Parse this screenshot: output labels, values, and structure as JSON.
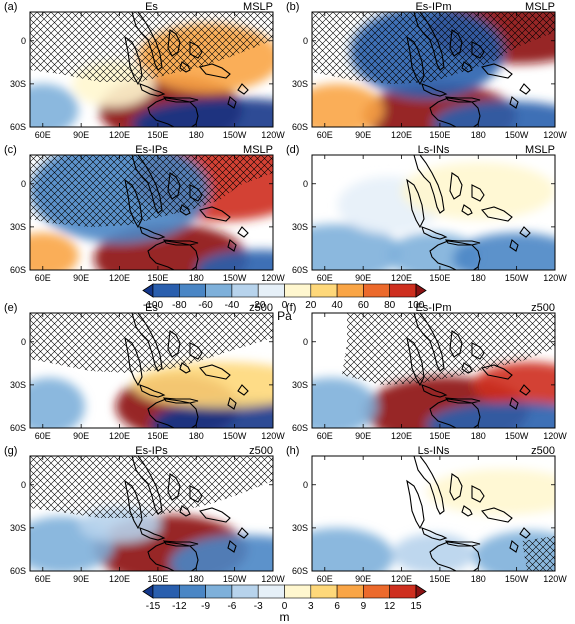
{
  "chart_data": [
    {
      "type": "heatmap",
      "grid": "top",
      "panels": [
        {
          "letter": "(a)",
          "name": "Es",
          "field": "MSLP",
          "fill": [
            {
              "lon": 160,
              "lat": -48,
              "val": 95,
              "rx": 28,
              "ry": 12
            },
            {
              "lon": 210,
              "lat": -58,
              "val": -85,
              "rx": 40,
              "ry": 9
            },
            {
              "lon": 60,
              "lat": -48,
              "val": -35,
              "rx": 14,
              "ry": 9
            },
            {
              "lon": 190,
              "lat": -12,
              "val": 40,
              "rx": 28,
              "ry": 12
            },
            {
              "lon": 115,
              "lat": -30,
              "val": 15,
              "rx": 16,
              "ry": 8
            }
          ]
        },
        {
          "letter": "(b)",
          "name": "Es-IPm",
          "field": "MSLP",
          "fill": [
            {
              "lon": 150,
              "lat": -52,
              "val": 100,
              "rx": 30,
              "ry": 11
            },
            {
              "lon": 210,
              "lat": 8,
              "val": 95,
              "rx": 35,
              "ry": 12
            },
            {
              "lon": 140,
              "lat": -8,
              "val": -70,
              "rx": 30,
              "ry": 16
            },
            {
              "lon": 205,
              "lat": -58,
              "val": -70,
              "rx": 30,
              "ry": 8
            },
            {
              "lon": 70,
              "lat": -48,
              "val": 35,
              "rx": 18,
              "ry": 9
            }
          ]
        },
        {
          "letter": "(c)",
          "name": "Es-IPs",
          "field": "MSLP",
          "fill": [
            {
              "lon": 160,
              "lat": -52,
              "val": 100,
              "rx": 30,
              "ry": 12
            },
            {
              "lon": 200,
              "lat": 2,
              "val": 80,
              "rx": 35,
              "ry": 14
            },
            {
              "lon": 120,
              "lat": -5,
              "val": -55,
              "rx": 35,
              "ry": 18
            },
            {
              "lon": 230,
              "lat": -60,
              "val": -70,
              "rx": 25,
              "ry": 7
            },
            {
              "lon": 60,
              "lat": -50,
              "val": 45,
              "rx": 14,
              "ry": 8
            }
          ]
        },
        {
          "letter": "(d)",
          "name": "Ls-INs",
          "field": "MSLP",
          "fill": [
            {
              "lon": 70,
              "lat": -48,
              "val": -45,
              "rx": 25,
              "ry": 10
            },
            {
              "lon": 145,
              "lat": -50,
              "val": -45,
              "rx": 18,
              "ry": 8
            },
            {
              "lon": 210,
              "lat": -52,
              "val": -55,
              "rx": 25,
              "ry": 9
            },
            {
              "lon": 110,
              "lat": -15,
              "val": -12,
              "rx": 20,
              "ry": 10
            },
            {
              "lon": 180,
              "lat": -5,
              "val": 12,
              "rx": 30,
              "ry": 10
            }
          ]
        }
      ],
      "colorbar": {
        "ticks": [
          "-100",
          "-80",
          "-60",
          "-40",
          "-20",
          "0",
          "20",
          "40",
          "60",
          "80",
          "100"
        ],
        "unit": "Pa",
        "range": [
          -100,
          100
        ]
      }
    },
    {
      "type": "heatmap",
      "grid": "bottom",
      "panels": [
        {
          "letter": "(e)",
          "name": "Es",
          "field": "z500",
          "fill": [
            {
              "lon": 165,
              "lat": -45,
              "val": 14,
              "rx": 24,
              "ry": 11
            },
            {
              "lon": 215,
              "lat": -58,
              "val": -13,
              "rx": 35,
              "ry": 9
            },
            {
              "lon": 65,
              "lat": -45,
              "val": -7,
              "rx": 14,
              "ry": 10
            },
            {
              "lon": 200,
              "lat": -30,
              "val": 4,
              "rx": 35,
              "ry": 8
            }
          ]
        },
        {
          "letter": "(f)",
          "name": "Es-IPm",
          "field": "z500",
          "fill": [
            {
              "lon": 155,
              "lat": -48,
              "val": 15,
              "rx": 32,
              "ry": 12
            },
            {
              "lon": 220,
              "lat": -30,
              "val": 10,
              "rx": 22,
              "ry": 8
            },
            {
              "lon": 210,
              "lat": -58,
              "val": -12,
              "rx": 35,
              "ry": 8
            },
            {
              "lon": 65,
              "lat": -45,
              "val": -6,
              "rx": 18,
              "ry": 10
            }
          ]
        },
        {
          "letter": "(g)",
          "name": "Es-IPs",
          "field": "z500",
          "fill": [
            {
              "lon": 160,
              "lat": -45,
              "val": 15,
              "rx": 30,
              "ry": 12
            },
            {
              "lon": 220,
              "lat": -55,
              "val": -10,
              "rx": 30,
              "ry": 10
            },
            {
              "lon": 75,
              "lat": -42,
              "val": -6,
              "rx": 20,
              "ry": 10
            },
            {
              "lon": 120,
              "lat": -28,
              "val": -3,
              "rx": 16,
              "ry": 6
            }
          ]
        },
        {
          "letter": "(h)",
          "name": "Ls-INs",
          "field": "z500",
          "fill": [
            {
              "lon": 70,
              "lat": -50,
              "val": -6,
              "rx": 22,
              "ry": 10
            },
            {
              "lon": 145,
              "lat": -48,
              "val": -5,
              "rx": 16,
              "ry": 7
            },
            {
              "lon": 220,
              "lat": -50,
              "val": -6,
              "rx": 22,
              "ry": 9
            },
            {
              "lon": 200,
              "lat": -5,
              "val": 2,
              "rx": 30,
              "ry": 8
            }
          ]
        }
      ],
      "colorbar": {
        "ticks": [
          "-15",
          "-12",
          "-9",
          "-6",
          "-3",
          "0",
          "3",
          "6",
          "9",
          "12",
          "15"
        ],
        "unit": "m",
        "range": [
          -15,
          15
        ]
      }
    }
  ],
  "axes": {
    "xticks": [
      {
        "lon": 60,
        "label": "60E"
      },
      {
        "lon": 90,
        "label": "90E"
      },
      {
        "lon": 120,
        "label": "120E"
      },
      {
        "lon": 150,
        "label": "150E"
      },
      {
        "lon": 180,
        "label": "180"
      },
      {
        "lon": 210,
        "label": "150W"
      },
      {
        "lon": 240,
        "label": "120W"
      }
    ],
    "yticks": [
      {
        "lat": 0,
        "label": "0"
      },
      {
        "lat": -30,
        "label": "30S"
      },
      {
        "lat": -60,
        "label": "60S"
      }
    ],
    "xlim": [
      50,
      240
    ],
    "ylim": [
      -60,
      20
    ]
  },
  "colors": {
    "palette": [
      "#14378a",
      "#2a5fae",
      "#4a86c5",
      "#7eb0da",
      "#b7d3ec",
      "#e6f0f8",
      "#fff7cf",
      "#fed87a",
      "#f9a546",
      "#ec6a2c",
      "#ce2f1f",
      "#8c1213"
    ],
    "hatch": "#000000",
    "land": "#000000"
  }
}
